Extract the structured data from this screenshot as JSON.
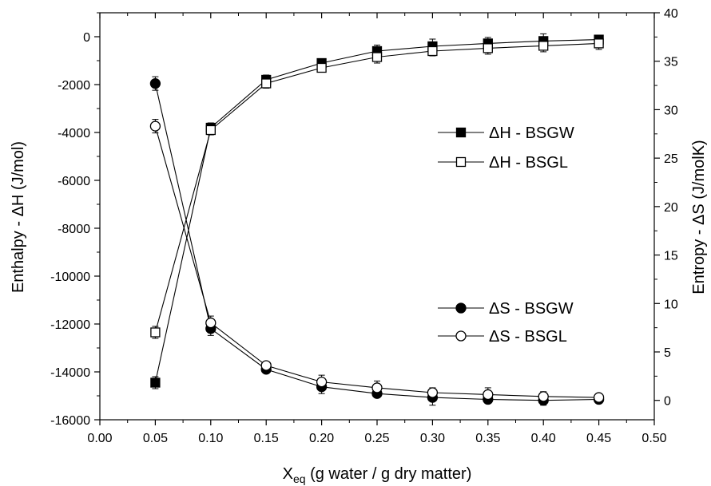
{
  "chart_data": {
    "type": "line",
    "xlabel": "X",
    "xlabel_sub": "eq",
    "xlabel_rest": " (g water / g dry matter)",
    "ylabel_left": "Enthalpy - ΔH (J/mol)",
    "ylabel_right": "Entropy - ΔS (J/molK)",
    "xlim": [
      0.0,
      0.5
    ],
    "ylim_left": [
      -16000,
      1000
    ],
    "ylim_right": [
      -2,
      40
    ],
    "x_ticks": [
      "0.00",
      "0.05",
      "0.10",
      "0.15",
      "0.20",
      "0.25",
      "0.30",
      "0.35",
      "0.40",
      "0.45",
      "0.50"
    ],
    "y_left_ticks": [
      "0",
      "-2000",
      "-4000",
      "-6000",
      "-8000",
      "-10000",
      "-12000",
      "-14000",
      "-16000"
    ],
    "y_right_ticks": [
      "0",
      "5",
      "10",
      "15",
      "20",
      "25",
      "30",
      "35",
      "40"
    ],
    "x": [
      0.05,
      0.1,
      0.15,
      0.2,
      0.25,
      0.3,
      0.35,
      0.4,
      0.45
    ],
    "series": [
      {
        "name": "ΔH - BSGW",
        "axis": "left",
        "marker": "square",
        "filled": true,
        "values": [
          -14450,
          -3800,
          -1800,
          -1100,
          -600,
          -400,
          -280,
          -180,
          -120
        ],
        "errors": [
          250,
          200,
          200,
          150,
          250,
          300,
          250,
          300,
          150
        ]
      },
      {
        "name": "ΔH - BSGL",
        "axis": "left",
        "marker": "square",
        "filled": false,
        "values": [
          -12350,
          -3900,
          -1950,
          -1300,
          -850,
          -600,
          -480,
          -380,
          -280
        ],
        "errors": [
          250,
          200,
          200,
          150,
          250,
          200,
          250,
          250,
          250
        ]
      },
      {
        "name": "ΔS - BSGW",
        "axis": "right",
        "marker": "circle",
        "filled": true,
        "values": [
          32.7,
          7.4,
          3.2,
          1.4,
          0.7,
          0.3,
          0.1,
          0.0,
          0.1
        ],
        "errors": [
          0.7,
          0.7,
          0.3,
          0.7,
          0.3,
          0.8,
          0.3,
          0.5,
          0.3
        ]
      },
      {
        "name": "ΔS - BSGL",
        "axis": "right",
        "marker": "circle",
        "filled": false,
        "values": [
          28.3,
          8.0,
          3.6,
          1.9,
          1.3,
          0.8,
          0.6,
          0.4,
          0.3
        ],
        "errors": [
          0.7,
          0.7,
          0.3,
          0.7,
          0.7,
          0.5,
          0.7,
          0.5,
          0.3
        ]
      }
    ],
    "legend": {
      "groups": [
        {
          "placement": "right-upper",
          "entries": [
            "ΔH - BSGW",
            "ΔH - BSGL"
          ]
        },
        {
          "placement": "right-lower",
          "entries": [
            "ΔS - BSGW",
            "ΔS - BSGL"
          ]
        }
      ]
    },
    "grid": false
  }
}
